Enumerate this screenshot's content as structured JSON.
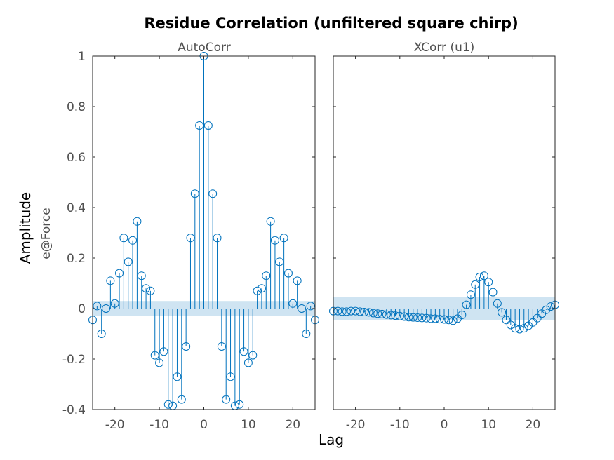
{
  "figure": {
    "title": "Residue Correlation (unfiltered square chirp)",
    "ylabel": "Amplitude",
    "ylabel_sub": "e@Force",
    "xlabel": "Lag"
  },
  "chart_data": [
    {
      "type": "stem",
      "title": "AutoCorr",
      "xlim": [
        -25,
        25
      ],
      "ylim": [
        -0.4,
        1
      ],
      "xticks": [
        -20,
        -10,
        0,
        10,
        20
      ],
      "yticks": [
        -0.4,
        -0.2,
        0,
        0.2,
        0.4,
        0.6,
        0.8,
        1
      ],
      "ytick_labels": [
        "-0.4",
        "-0.2",
        "0",
        "0.2",
        "0.4",
        "0.6",
        "0.8",
        "1"
      ],
      "confidence_band": [
        -0.03,
        0.03
      ],
      "colors": {
        "stem": "#0072BD",
        "band": "#cfe4f2"
      },
      "x": [
        -25,
        -24,
        -23,
        -22,
        -21,
        -20,
        -19,
        -18,
        -17,
        -16,
        -15,
        -14,
        -13,
        -12,
        -11,
        -10,
        -9,
        -8,
        -7,
        -6,
        -5,
        -4,
        -3,
        -2,
        -1,
        0,
        1,
        2,
        3,
        4,
        5,
        6,
        7,
        8,
        9,
        10,
        11,
        12,
        13,
        14,
        15,
        16,
        17,
        18,
        19,
        20,
        21,
        22,
        23,
        24,
        25
      ],
      "values": [
        -0.045,
        0.01,
        -0.1,
        0.0,
        0.11,
        0.02,
        0.14,
        0.28,
        0.185,
        0.27,
        0.345,
        0.13,
        0.08,
        0.07,
        -0.185,
        -0.215,
        -0.17,
        -0.38,
        -0.385,
        -0.27,
        -0.36,
        -0.15,
        0.28,
        0.455,
        0.725,
        1.0,
        0.725,
        0.455,
        0.28,
        -0.15,
        -0.36,
        -0.27,
        -0.385,
        -0.38,
        -0.17,
        -0.215,
        -0.185,
        0.07,
        0.08,
        0.13,
        0.345,
        0.27,
        0.185,
        0.28,
        0.14,
        0.02,
        0.11,
        0.0,
        -0.1,
        0.01,
        -0.045
      ]
    },
    {
      "type": "stem",
      "title": "XCorr (u1)",
      "xlim": [
        -25,
        25
      ],
      "ylim": [
        -0.4,
        1
      ],
      "xticks": [
        -20,
        -10,
        0,
        10,
        20
      ],
      "yticks": [
        -0.4,
        -0.2,
        0,
        0.2,
        0.4,
        0.6,
        0.8,
        1
      ],
      "confidence_band": [
        -0.045,
        0.045
      ],
      "colors": {
        "stem": "#0072BD",
        "band": "#cfe4f2"
      },
      "x": [
        -25,
        -24,
        -23,
        -22,
        -21,
        -20,
        -19,
        -18,
        -17,
        -16,
        -15,
        -14,
        -13,
        -12,
        -11,
        -10,
        -9,
        -8,
        -7,
        -6,
        -5,
        -4,
        -3,
        -2,
        -1,
        0,
        1,
        2,
        3,
        4,
        5,
        6,
        7,
        8,
        9,
        10,
        11,
        12,
        13,
        14,
        15,
        16,
        17,
        18,
        19,
        20,
        21,
        22,
        23,
        24,
        25
      ],
      "values": [
        -0.01,
        -0.01,
        -0.012,
        -0.012,
        -0.01,
        -0.01,
        -0.012,
        -0.014,
        -0.015,
        -0.018,
        -0.02,
        -0.022,
        -0.024,
        -0.026,
        -0.028,
        -0.03,
        -0.032,
        -0.034,
        -0.035,
        -0.036,
        -0.037,
        -0.038,
        -0.04,
        -0.04,
        -0.042,
        -0.043,
        -0.045,
        -0.048,
        -0.04,
        -0.025,
        0.015,
        0.055,
        0.095,
        0.125,
        0.13,
        0.105,
        0.065,
        0.02,
        -0.015,
        -0.045,
        -0.065,
        -0.078,
        -0.082,
        -0.078,
        -0.068,
        -0.055,
        -0.038,
        -0.02,
        -0.005,
        0.008,
        0.015
      ]
    }
  ]
}
